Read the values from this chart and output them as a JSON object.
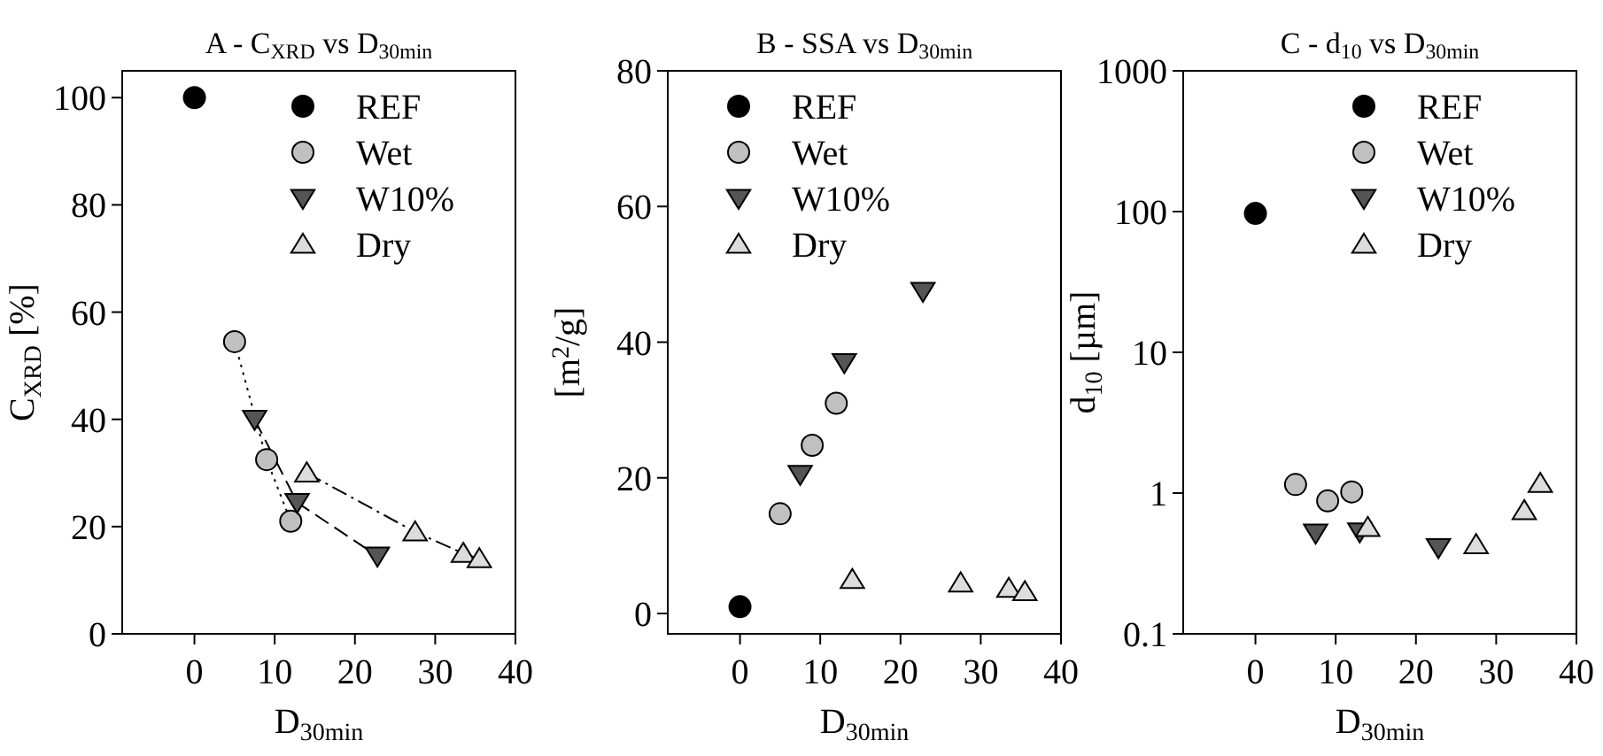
{
  "chart_data": [
    {
      "type": "scatter",
      "title": "A - C$_{XRD}$ vs D$_{30min}$",
      "xlabel": "D$_{30min}$",
      "ylabel": "C$_{XRD}$ [%]",
      "xlim": [
        -9,
        40
      ],
      "xticks": [
        0,
        10,
        20,
        30,
        40
      ],
      "ylim": [
        0,
        105
      ],
      "yticks": [
        0,
        20,
        40,
        60,
        80,
        100
      ],
      "grid": false,
      "legend": "top right",
      "series": [
        {
          "name": "REF",
          "color": "#000000",
          "marker": "circle",
          "x": [
            0
          ],
          "values": [
            100
          ]
        },
        {
          "name": "Wet",
          "color": "#c0c0c0",
          "marker": "circle",
          "type": "line",
          "line_style": "dotted",
          "x": [
            5,
            9,
            12
          ],
          "values": [
            54.5,
            32.5,
            21
          ]
        },
        {
          "name": "W10%",
          "color": "#555555",
          "marker": "triangle-down",
          "type": "line",
          "line_style": "dashed",
          "x": [
            7.5,
            12.8,
            22.8
          ],
          "values": [
            40,
            24.5,
            14.5
          ]
        },
        {
          "name": "Dry",
          "color": "#dcdcdc",
          "marker": "triangle",
          "type": "line",
          "line_style": "dashdot",
          "x": [
            14,
            27.5,
            33.5,
            35.5
          ],
          "values": [
            30,
            19,
            15,
            14
          ]
        }
      ]
    },
    {
      "type": "scatter",
      "title": "B - SSA vs D$_{30min}$",
      "xlabel": "D$_{30min}$",
      "ylabel": "[m$^{2}$/g]",
      "xlim": [
        -9,
        40
      ],
      "xticks": [
        0,
        10,
        20,
        30,
        40
      ],
      "ylim": [
        -3,
        80
      ],
      "yticks": [
        0,
        20,
        40,
        60,
        80
      ],
      "grid": false,
      "legend": "top left",
      "series": [
        {
          "name": "REF",
          "color": "#000000",
          "marker": "circle",
          "x": [
            0
          ],
          "values": [
            1
          ]
        },
        {
          "name": "Wet",
          "color": "#c0c0c0",
          "marker": "circle",
          "x": [
            5,
            9,
            12
          ],
          "values": [
            14.7,
            24.8,
            31
          ]
        },
        {
          "name": "W10%",
          "color": "#555555",
          "marker": "triangle-down",
          "x": [
            7.5,
            13,
            22.8
          ],
          "values": [
            20.5,
            37,
            47.5
          ]
        },
        {
          "name": "Dry",
          "color": "#dcdcdc",
          "marker": "triangle",
          "x": [
            14,
            27.5,
            33.5,
            35.5
          ],
          "values": [
            5,
            4.5,
            3.7,
            3.2
          ]
        }
      ]
    },
    {
      "type": "scatter",
      "title": "C - d$_{10}$ vs D$_{30min}$",
      "xlabel": "D$_{30min}$",
      "ylabel": "d$_{10}$ [µm]",
      "xlim": [
        -9,
        40
      ],
      "xticks": [
        0,
        10,
        20,
        30,
        40
      ],
      "ylim": [
        0.1,
        1000
      ],
      "yticks": [
        0.1,
        1,
        10,
        100,
        1000
      ],
      "log": "y",
      "grid": false,
      "legend": "top right",
      "series": [
        {
          "name": "REF",
          "color": "#000000",
          "marker": "circle",
          "x": [
            0
          ],
          "values": [
            97
          ]
        },
        {
          "name": "Wet",
          "color": "#c0c0c0",
          "marker": "circle",
          "x": [
            5,
            9,
            12
          ],
          "values": [
            1.15,
            0.88,
            1.02
          ]
        },
        {
          "name": "W10%",
          "color": "#555555",
          "marker": "triangle-down",
          "x": [
            7.5,
            13,
            22.8
          ],
          "values": [
            0.52,
            0.53,
            0.41
          ]
        },
        {
          "name": "Dry",
          "color": "#dcdcdc",
          "marker": "triangle",
          "x": [
            14,
            27.5,
            33.5,
            35.5
          ],
          "values": [
            0.57,
            0.43,
            0.75,
            1.17
          ]
        }
      ]
    }
  ]
}
